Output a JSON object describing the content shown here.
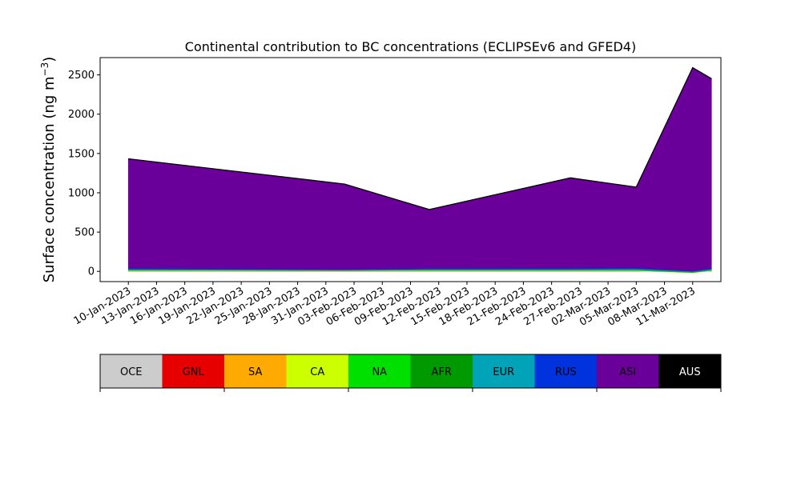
{
  "chart_data": {
    "type": "area",
    "title": "Continental contribution to BC concentrations (ECLIPSEv6 and GFED4)",
    "ylabel": "Surface concentration (ng m",
    "ylabel_unit_sup": "−3",
    "ylabel_close": ")",
    "xlabel": "",
    "ylim": [
      -130,
      2720
    ],
    "yticks": [
      0,
      500,
      1000,
      1500,
      2000,
      2500
    ],
    "xlim": [
      "2023-01-07",
      "2023-03-14"
    ],
    "xticks": [
      "10-Jan-2023",
      "13-Jan-2023",
      "16-Jan-2023",
      "19-Jan-2023",
      "22-Jan-2023",
      "25-Jan-2023",
      "28-Jan-2023",
      "31-Jan-2023",
      "03-Feb-2023",
      "06-Feb-2023",
      "09-Feb-2023",
      "12-Feb-2023",
      "15-Feb-2023",
      "18-Feb-2023",
      "21-Feb-2023",
      "24-Feb-2023",
      "27-Feb-2023",
      "02-Mar-2023",
      "05-Mar-2023",
      "08-Mar-2023",
      "11-Mar-2023"
    ],
    "grid": false,
    "stacked": true,
    "x": [
      "2023-01-10",
      "2023-02-02",
      "2023-02-11",
      "2023-02-26",
      "2023-03-05",
      "2023-03-11",
      "2023-03-13"
    ],
    "series": [
      {
        "name": "OCE",
        "color": "#cccccc",
        "values": [
          2,
          2,
          2,
          2,
          2,
          2,
          2
        ]
      },
      {
        "name": "GNL",
        "color": "#e60000",
        "values": [
          1,
          1,
          1,
          1,
          1,
          1,
          1
        ]
      },
      {
        "name": "SA",
        "color": "#ffaa00",
        "values": [
          3,
          2,
          3,
          3,
          3,
          -20,
          3
        ]
      },
      {
        "name": "CA",
        "color": "#ccff00",
        "values": [
          5,
          3,
          5,
          5,
          5,
          2,
          5
        ]
      },
      {
        "name": "NA",
        "color": "#00e000",
        "values": [
          6,
          4,
          6,
          6,
          8,
          4,
          6
        ]
      },
      {
        "name": "AFR",
        "color": "#009900",
        "values": [
          3,
          2,
          3,
          3,
          3,
          2,
          3
        ]
      },
      {
        "name": "EUR",
        "color": "#00a3b8",
        "values": [
          10,
          6,
          10,
          10,
          12,
          8,
          10
        ]
      },
      {
        "name": "RUS",
        "color": "#0033dd",
        "values": [
          12,
          4,
          9,
          12,
          12,
          6,
          12
        ]
      },
      {
        "name": "ASI",
        "color": "#6a0099",
        "values": [
          1388,
          1085,
          746,
          1146,
          1024,
          2585,
          2408
        ]
      },
      {
        "name": "AUS",
        "color": "#000000",
        "values": [
          2,
          2,
          2,
          2,
          2,
          2,
          2
        ]
      }
    ],
    "legend": {
      "placement": "bottom",
      "labels": [
        "OCE",
        "GNL",
        "SA",
        "CA",
        "NA",
        "AFR",
        "EUR",
        "RUS",
        "ASI",
        "AUS"
      ],
      "colors": [
        "#cccccc",
        "#e60000",
        "#ffaa00",
        "#ccff00",
        "#00e000",
        "#009900",
        "#00a3b8",
        "#0033dd",
        "#6a0099",
        "#000000"
      ],
      "text_colors": [
        "#000000",
        "#000000",
        "#000000",
        "#000000",
        "#000000",
        "#000000",
        "#000000",
        "#000000",
        "#000000",
        "#ffffff"
      ]
    }
  }
}
